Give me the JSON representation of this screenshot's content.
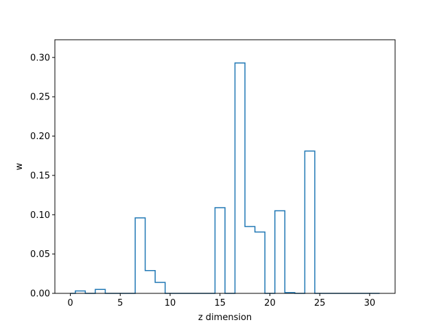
{
  "chart_data": {
    "type": "step",
    "title": "",
    "xlabel": "z dimension",
    "ylabel": "w",
    "xlim": [
      -1.55,
      32.55
    ],
    "ylim": [
      0,
      0.3225
    ],
    "xticks": [
      0,
      5,
      10,
      15,
      20,
      25,
      30
    ],
    "yticks": [
      0.0,
      0.05,
      0.1,
      0.15,
      0.2,
      0.25,
      0.3
    ],
    "xtick_labels": [
      "0",
      "5",
      "10",
      "15",
      "20",
      "25",
      "30"
    ],
    "ytick_labels": [
      "0.00",
      "0.05",
      "0.10",
      "0.15",
      "0.20",
      "0.25",
      "0.30"
    ],
    "grid": false,
    "series": [
      {
        "color": "#1f77b4",
        "x": [
          0,
          1,
          2,
          3,
          4,
          5,
          6,
          7,
          8,
          9,
          10,
          11,
          12,
          13,
          14,
          15,
          16,
          17,
          18,
          19,
          20,
          21,
          22,
          23,
          24,
          25,
          26,
          27,
          28,
          29,
          30,
          31
        ],
        "values": [
          0.0,
          0.003,
          0.0,
          0.005,
          0.0,
          0.0,
          0.0,
          0.096,
          0.029,
          0.014,
          0.0,
          0.0,
          0.0,
          0.0,
          0.0,
          0.109,
          0.0,
          0.293,
          0.085,
          0.078,
          0.0,
          0.105,
          0.001,
          0.0,
          0.181,
          0.0,
          0.0,
          0.0,
          0.0,
          0.0,
          0.0,
          0.0
        ]
      }
    ]
  }
}
